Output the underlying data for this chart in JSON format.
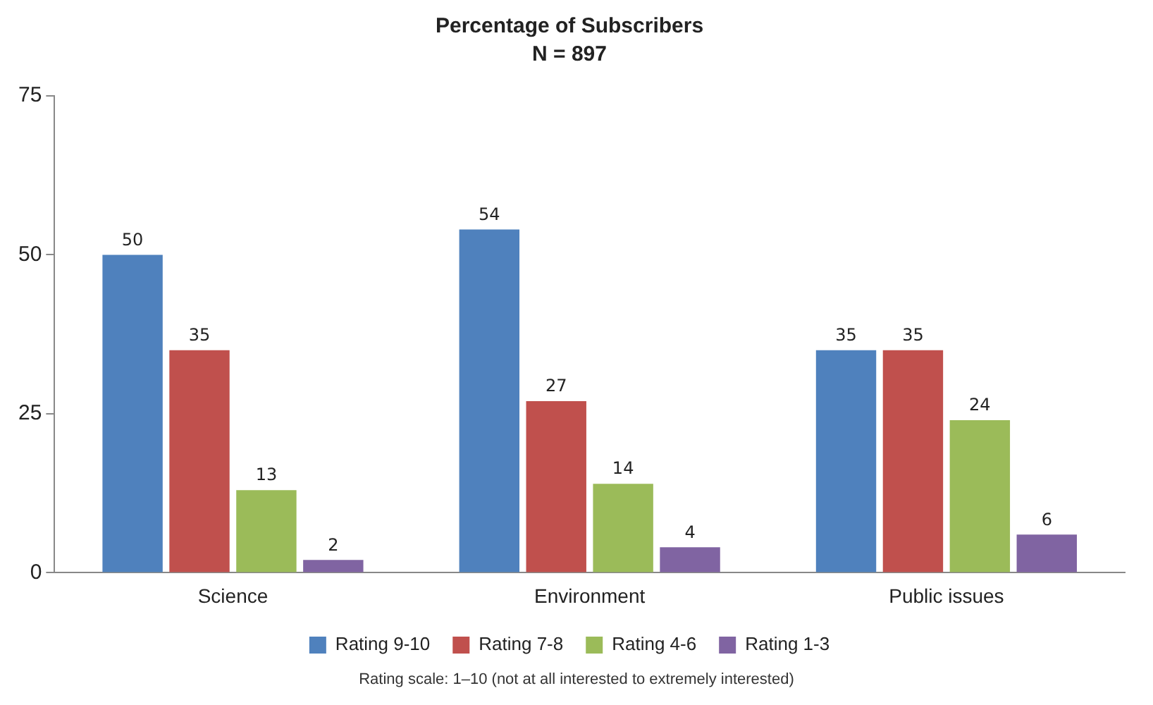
{
  "chart_data": {
    "type": "bar",
    "title": "Percentage of Subscribers",
    "subtitle": "N = 897",
    "categories": [
      "Science",
      "Environment",
      "Public issues"
    ],
    "series": [
      {
        "name": "Rating 9-10",
        "color": "#4f81bd",
        "values": [
          50,
          54,
          35
        ]
      },
      {
        "name": "Rating 7-8",
        "color": "#c0504d",
        "values": [
          35,
          27,
          35
        ]
      },
      {
        "name": "Rating 4-6",
        "color": "#9bbb59",
        "values": [
          13,
          14,
          24
        ]
      },
      {
        "name": "Rating 1-3",
        "color": "#8064a2",
        "values": [
          2,
          4,
          6
        ]
      }
    ],
    "ylim": [
      0,
      75
    ],
    "yticks": [
      0,
      25,
      50,
      75
    ],
    "grid": false,
    "legend": "bottom",
    "data_labels": true,
    "annotations": [
      "Rating scale: 1–10 (not at all interested to extremely interested)"
    ]
  }
}
